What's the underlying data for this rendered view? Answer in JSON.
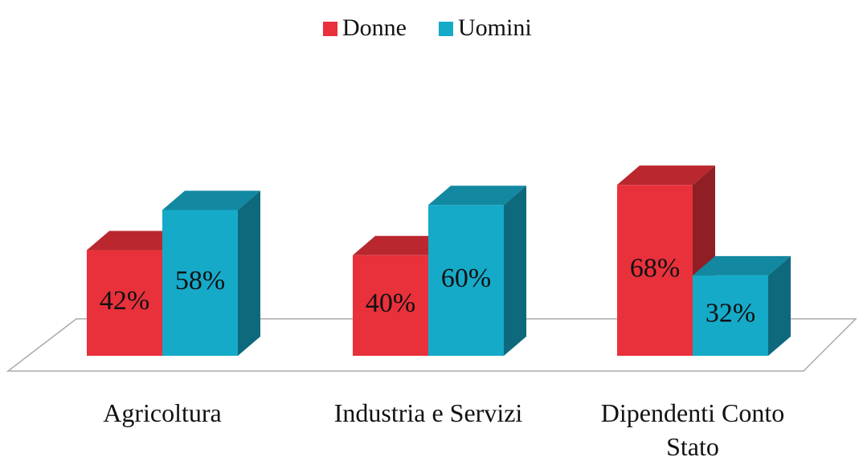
{
  "chart_data": {
    "type": "bar3d",
    "categories": [
      "Agricoltura",
      "Industria e Servizi",
      "Dipendenti Conto Stato"
    ],
    "series": [
      {
        "name": "Donne",
        "color": "#e8313b",
        "values": [
          42,
          40,
          68
        ],
        "value_labels": [
          "42%",
          "40%",
          "68%"
        ]
      },
      {
        "name": "Uomini",
        "color": "#16aac9",
        "values": [
          58,
          60,
          32
        ],
        "value_labels": [
          "58%",
          "60%",
          "32%"
        ]
      }
    ],
    "legend": "top"
  }
}
